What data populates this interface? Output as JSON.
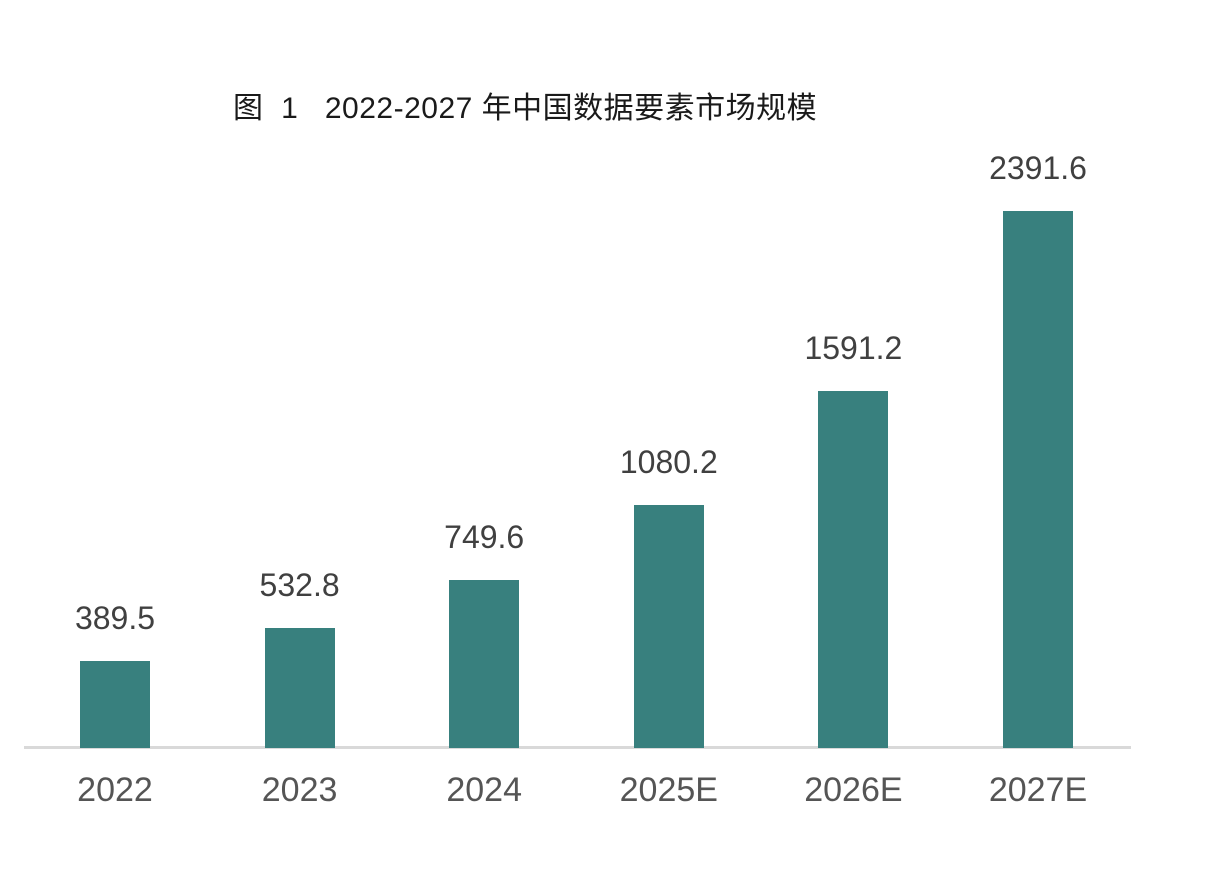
{
  "figure_label": "图  1",
  "chart_data": {
    "type": "bar",
    "title": "图  1   2022-2027 年中国数据要素市场规模",
    "categories": [
      "2022",
      "2023",
      "2024",
      "2025E",
      "2026E",
      "2027E"
    ],
    "values": [
      389.5,
      532.8,
      749.6,
      1080.2,
      1591.2,
      2391.6
    ],
    "data_labels": [
      "389.5",
      "532.8",
      "749.6",
      "1080.2",
      "1591.2",
      "2391.6"
    ],
    "xlabel": "",
    "ylabel": "",
    "ylim": [
      0,
      2700
    ],
    "grid": false,
    "legend": false,
    "colors": {
      "bar": "#38807E",
      "value_label": "#404040",
      "axis_label": "#555555",
      "title": "#1a1a1a",
      "axis_line": "#d9d9d9",
      "background": "#ffffff"
    }
  }
}
